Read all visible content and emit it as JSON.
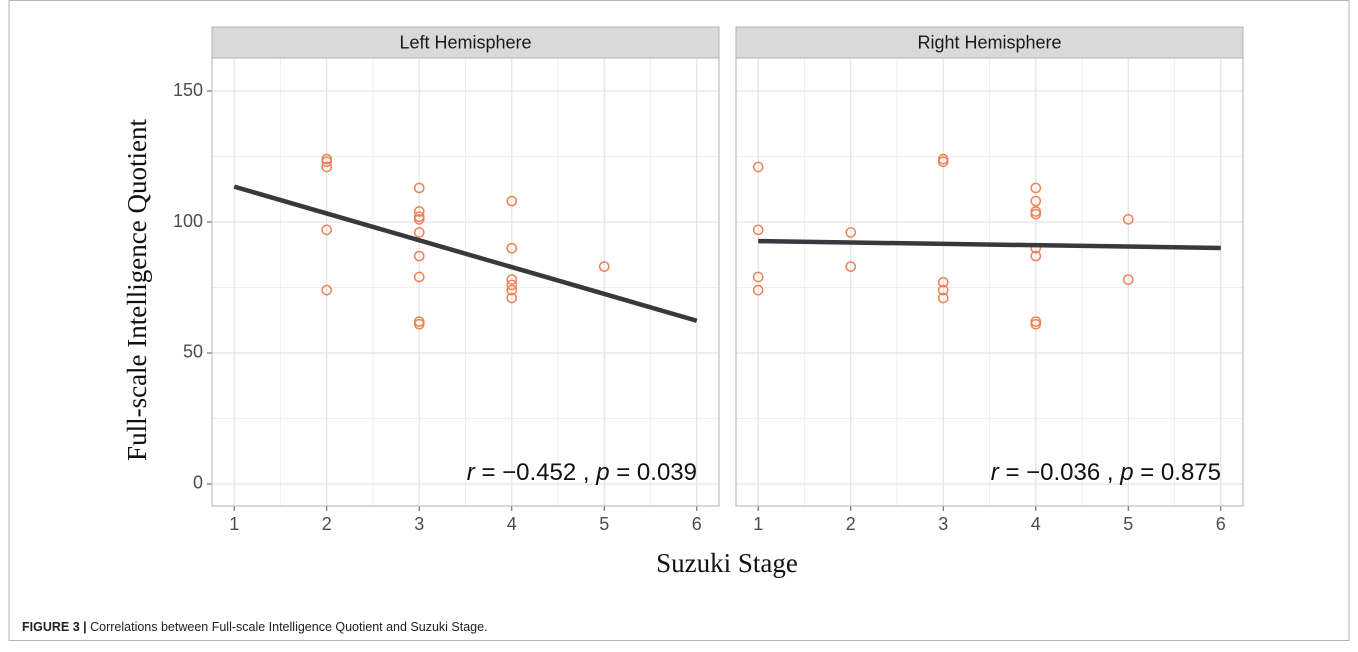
{
  "ylabel": "Full-scale Intelligence Quotient",
  "xlabel": "Suzuki Stage",
  "caption_label": "FIGURE 3 |",
  "caption": "Correlations between Full-scale Intelligence Quotient and Suzuki Stage.",
  "chart_data": [
    {
      "type": "scatter",
      "title": "Left Hemisphere",
      "x": [
        2,
        2,
        2,
        2,
        2,
        3,
        3,
        3,
        3,
        3,
        3,
        3,
        3,
        3,
        4,
        4,
        4,
        4,
        4,
        4,
        5
      ],
      "values": [
        124,
        123,
        121,
        97,
        74,
        113,
        104,
        102,
        101,
        96,
        87,
        79,
        62,
        61,
        108,
        90,
        78,
        76,
        74,
        71,
        83
      ],
      "color": "#ef8354",
      "fit": {
        "x": [
          1,
          6
        ],
        "y": [
          113.5,
          62.3
        ],
        "color": "#38383d"
      },
      "annotation": [
        "r",
        " = −0.452 , ",
        "p",
        " = 0.039"
      ],
      "xlim": [
        0.76,
        6.24
      ],
      "ylim": [
        -8.4,
        162.6
      ],
      "xticks": [
        1,
        2,
        3,
        4,
        5,
        6
      ],
      "yticks": [
        0,
        50,
        100,
        150
      ],
      "grid": true
    },
    {
      "type": "scatter",
      "title": "Right Hemisphere",
      "x": [
        1,
        1,
        1,
        1,
        2,
        2,
        3,
        3,
        3,
        3,
        3,
        4,
        4,
        4,
        4,
        4,
        4,
        4,
        4,
        5,
        5
      ],
      "values": [
        121,
        97,
        79,
        74,
        96,
        83,
        124,
        123,
        77,
        74,
        71,
        113,
        108,
        104,
        103,
        90,
        87,
        62,
        61,
        101,
        78
      ],
      "color": "#ef8354",
      "fit": {
        "x": [
          1,
          6
        ],
        "y": [
          92.7,
          90.1
        ],
        "color": "#38383d"
      },
      "annotation": [
        "r",
        " = −0.036 , ",
        "p",
        " = 0.875"
      ],
      "xlim": [
        0.76,
        6.24
      ],
      "ylim": [
        -8.4,
        162.6
      ],
      "xticks": [
        1,
        2,
        3,
        4,
        5,
        6
      ],
      "yticks": [
        0,
        50,
        100,
        150
      ],
      "grid": true
    }
  ]
}
